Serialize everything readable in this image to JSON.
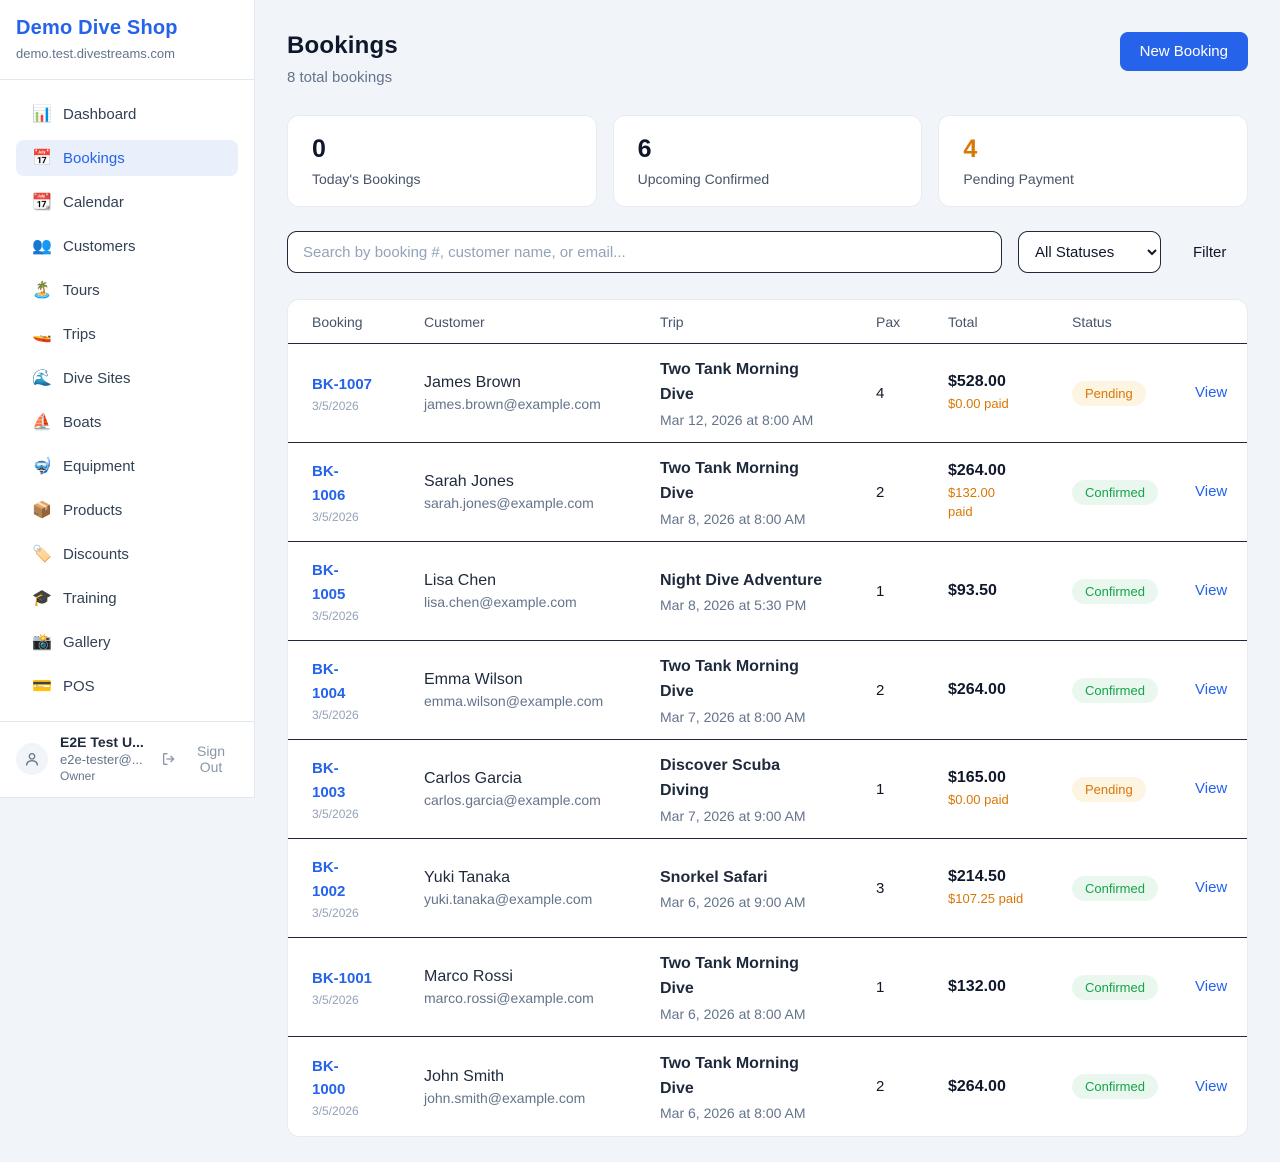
{
  "sidebar": {
    "brand": "Demo Dive Shop",
    "subdomain": "demo.test.divestreams.com",
    "items": [
      {
        "label": "Dashboard",
        "icon": "bar-chart-icon",
        "glyph": "📊",
        "active": false
      },
      {
        "label": "Bookings",
        "icon": "calendar-date-icon",
        "glyph": "📅",
        "active": true
      },
      {
        "label": "Calendar",
        "icon": "tear-off-calendar-icon",
        "glyph": "📆",
        "active": false
      },
      {
        "label": "Customers",
        "icon": "people-icon",
        "glyph": "👥",
        "active": false
      },
      {
        "label": "Tours",
        "icon": "island-icon",
        "glyph": "🏝️",
        "active": false
      },
      {
        "label": "Trips",
        "icon": "speedboat-icon",
        "glyph": "🚤",
        "active": false
      },
      {
        "label": "Dive Sites",
        "icon": "wave-icon",
        "glyph": "🌊",
        "active": false
      },
      {
        "label": "Boats",
        "icon": "sailboat-icon",
        "glyph": "⛵",
        "active": false
      },
      {
        "label": "Equipment",
        "icon": "diving-mask-icon",
        "glyph": "🤿",
        "active": false
      },
      {
        "label": "Products",
        "icon": "package-icon",
        "glyph": "📦",
        "active": false
      },
      {
        "label": "Discounts",
        "icon": "label-tag-icon",
        "glyph": "🏷️",
        "active": false
      },
      {
        "label": "Training",
        "icon": "graduation-cap-icon",
        "glyph": "🎓",
        "active": false
      },
      {
        "label": "Gallery",
        "icon": "camera-flash-icon",
        "glyph": "📸",
        "active": false
      },
      {
        "label": "POS",
        "icon": "credit-card-icon",
        "glyph": "💳",
        "active": false
      }
    ],
    "user": {
      "name": "E2E Test U...",
      "email": "e2e-tester@...",
      "role": "Owner",
      "sign_out_label": "Sign Out"
    }
  },
  "header": {
    "title": "Bookings",
    "subtitle": "8 total bookings",
    "new_booking_label": "New Booking"
  },
  "stats": [
    {
      "value": "0",
      "label": "Today's Bookings",
      "color": "#0f172a"
    },
    {
      "value": "6",
      "label": "Upcoming Confirmed",
      "color": "#0f172a"
    },
    {
      "value": "4",
      "label": "Pending Payment",
      "color": "#d97706"
    }
  ],
  "toolbar": {
    "search_placeholder": "Search by booking #, customer name, or email...",
    "status_filter_value": "All Statuses",
    "filter_label": "Filter"
  },
  "table": {
    "columns": [
      "Booking",
      "Customer",
      "Trip",
      "Pax",
      "Total",
      "Status"
    ],
    "view_label": "View",
    "rows": [
      {
        "id": "BK-1007",
        "date": "3/5/2026",
        "customer": "James Brown",
        "email": "james.brown@example.com",
        "trip": "Two Tank Morning\nDive",
        "trip_datetime": "Mar 12, 2026 at 8:00 AM",
        "pax": "4",
        "total": "$528.00",
        "paid": "$0.00 paid",
        "status": "Pending"
      },
      {
        "id": "BK-\n1006",
        "date": "3/5/2026",
        "customer": "Sarah Jones",
        "email": "sarah.jones@example.com",
        "trip": "Two Tank Morning\nDive",
        "trip_datetime": "Mar 8, 2026 at 8:00 AM",
        "pax": "2",
        "total": "$264.00",
        "paid": "$132.00\npaid",
        "status": "Confirmed"
      },
      {
        "id": "BK-\n1005",
        "date": "3/5/2026",
        "customer": "Lisa Chen",
        "email": "lisa.chen@example.com",
        "trip": "Night Dive Adventure",
        "trip_datetime": "Mar 8, 2026 at 5:30 PM",
        "pax": "1",
        "total": "$93.50",
        "paid": null,
        "status": "Confirmed"
      },
      {
        "id": "BK-\n1004",
        "date": "3/5/2026",
        "customer": "Emma Wilson",
        "email": "emma.wilson@example.com",
        "trip": "Two Tank Morning\nDive",
        "trip_datetime": "Mar 7, 2026 at 8:00 AM",
        "pax": "2",
        "total": "$264.00",
        "paid": null,
        "status": "Confirmed"
      },
      {
        "id": "BK-\n1003",
        "date": "3/5/2026",
        "customer": "Carlos Garcia",
        "email": "carlos.garcia@example.com",
        "trip": "Discover Scuba\nDiving",
        "trip_datetime": "Mar 7, 2026 at 9:00 AM",
        "pax": "1",
        "total": "$165.00",
        "paid": "$0.00 paid",
        "status": "Pending"
      },
      {
        "id": "BK-\n1002",
        "date": "3/5/2026",
        "customer": "Yuki Tanaka",
        "email": "yuki.tanaka@example.com",
        "trip": "Snorkel Safari",
        "trip_datetime": "Mar 6, 2026 at 9:00 AM",
        "pax": "3",
        "total": "$214.50",
        "paid": "$107.25 paid",
        "status": "Confirmed"
      },
      {
        "id": "BK-1001",
        "date": "3/5/2026",
        "customer": "Marco Rossi",
        "email": "marco.rossi@example.com",
        "trip": "Two Tank Morning\nDive",
        "trip_datetime": "Mar 6, 2026 at 8:00 AM",
        "pax": "1",
        "total": "$132.00",
        "paid": null,
        "status": "Confirmed"
      },
      {
        "id": "BK-\n1000",
        "date": "3/5/2026",
        "customer": "John Smith",
        "email": "john.smith@example.com",
        "trip": "Two Tank Morning\nDive",
        "trip_datetime": "Mar 6, 2026 at 8:00 AM",
        "pax": "2",
        "total": "$264.00",
        "paid": null,
        "status": "Confirmed"
      }
    ]
  },
  "colors": {
    "accent": "#2563eb",
    "pending_text": "#d97706",
    "pending_bg": "#fdf4e1",
    "confirmed_text": "#16a34a",
    "confirmed_bg": "#e9f7ee",
    "page_bg": "#f1f5f9",
    "row_border": "#1e293b",
    "card_border": "#e7ecf2"
  }
}
